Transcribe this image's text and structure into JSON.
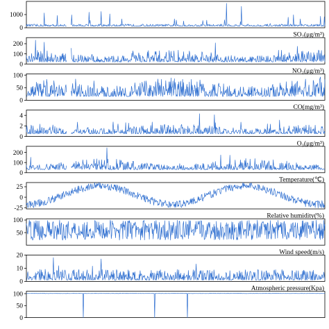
{
  "colors": {
    "line": "#2f6fd0",
    "axis": "#000000"
  },
  "chart_data": [
    {
      "type": "line",
      "title": "",
      "ylim": [
        0,
        2000
      ],
      "yticks": [
        {
          "value": 0,
          "label": "0"
        },
        {
          "value": 1000,
          "label": "1000"
        }
      ],
      "base": 120,
      "amp": 160,
      "spike_rate": 0.03,
      "spike_amp": 900,
      "seasonal": 0,
      "gap": true,
      "spikes": [
        {
          "x": 0.06,
          "y": 1120
        },
        {
          "x": 0.21,
          "y": 1180
        },
        {
          "x": 0.25,
          "y": 1230
        },
        {
          "x": 0.28,
          "y": 1050
        },
        {
          "x": 0.67,
          "y": 1850
        },
        {
          "x": 0.72,
          "y": 1620
        }
      ]
    },
    {
      "type": "line",
      "title": "SO₂(μg/m³)",
      "ylim": [
        0,
        260
      ],
      "yticks": [
        {
          "value": 0,
          "label": "0"
        },
        {
          "value": 100,
          "label": "100"
        },
        {
          "value": 200,
          "label": "200"
        }
      ],
      "base": 20,
      "amp": 90,
      "spike_rate": 0.04,
      "spike_amp": 120,
      "seasonal": 0.35,
      "gap": true,
      "spikes": [
        {
          "x": 0.03,
          "y": 235
        },
        {
          "x": 0.06,
          "y": 215
        }
      ]
    },
    {
      "type": "line",
      "title": "NO₂(μg/m³)",
      "ylim": [
        0,
        105
      ],
      "yticks": [
        {
          "value": 0,
          "label": "0"
        },
        {
          "value": 50,
          "label": "50"
        },
        {
          "value": 100,
          "label": "100"
        }
      ],
      "base": 15,
      "amp": 60,
      "spike_rate": 0.02,
      "spike_amp": 25,
      "seasonal": 0.3,
      "gap": true,
      "spikes": []
    },
    {
      "type": "line",
      "title": "CO(mg/m³)",
      "ylim": [
        0,
        5
      ],
      "yticks": [
        {
          "value": 0,
          "label": "0"
        },
        {
          "value": 2,
          "label": "2"
        },
        {
          "value": 4,
          "label": "4"
        }
      ],
      "base": 0.5,
      "amp": 1.5,
      "spike_rate": 0.03,
      "spike_amp": 2.2,
      "seasonal": 0.3,
      "gap": true,
      "spikes": [
        {
          "x": 0.58,
          "y": 4.3
        },
        {
          "x": 0.63,
          "y": 4.1
        }
      ]
    },
    {
      "type": "line",
      "title": "O₃(μg/m³)",
      "ylim": [
        0,
        260
      ],
      "yticks": [
        {
          "value": 0,
          "label": "0"
        },
        {
          "value": 100,
          "label": "100"
        },
        {
          "value": 200,
          "label": "200"
        }
      ],
      "base": 30,
      "amp": 80,
      "spike_rate": 0.03,
      "spike_amp": 90,
      "seasonal": -0.4,
      "gap": true,
      "spikes": [
        {
          "x": 0.27,
          "y": 245
        }
      ]
    },
    {
      "type": "line",
      "title": "Temperature(℃)",
      "ylim": [
        -28,
        35
      ],
      "yticks": [
        {
          "value": -25,
          "label": "-25"
        },
        {
          "value": 0,
          "label": "0"
        },
        {
          "value": 25,
          "label": "25"
        }
      ],
      "mode": "seasonal",
      "season_mid": 5,
      "season_amp": 22,
      "noise": 9,
      "gap": false
    },
    {
      "type": "line",
      "title": "Relative humidity(%)",
      "ylim": [
        0,
        105
      ],
      "yticks": [
        {
          "value": 50,
          "label": "50"
        },
        {
          "value": 100,
          "label": "100"
        }
      ],
      "mode": "band",
      "band_mid": 60,
      "band_amp": 40,
      "gap": false
    },
    {
      "type": "line",
      "title": "Wind speed(m/s)",
      "ylim": [
        0,
        20
      ],
      "yticks": [
        {
          "value": 0,
          "label": "0"
        },
        {
          "value": 10,
          "label": "10"
        },
        {
          "value": 20,
          "label": "20"
        }
      ],
      "base": 1,
      "amp": 8,
      "spike_rate": 0.03,
      "spike_amp": 8,
      "seasonal": 0,
      "gap": false,
      "spikes": [
        {
          "x": 0.09,
          "y": 18
        },
        {
          "x": 0.25,
          "y": 17
        }
      ]
    },
    {
      "type": "line",
      "title": "Atmospheric pressure(Kpa)",
      "ylim": [
        0,
        110
      ],
      "yticks": [
        {
          "value": 0,
          "label": "0"
        },
        {
          "value": 50,
          "label": "50"
        },
        {
          "value": 100,
          "label": "100"
        }
      ],
      "mode": "flat",
      "flat_value": 101,
      "noise": 1.2,
      "gap": false,
      "drops": [
        0.19,
        0.43,
        0.54
      ]
    }
  ]
}
